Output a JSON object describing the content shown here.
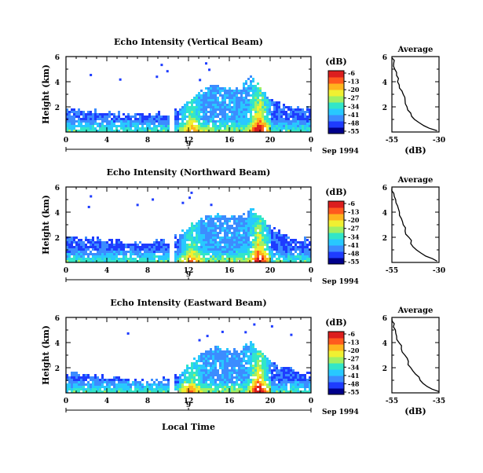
{
  "figure": {
    "date_label": "Sep 1994",
    "bottom_label": "Local Time",
    "colorbar_unit": "(dB)",
    "average_title": "Average",
    "colorbar_ticks": [
      "-6",
      "-13",
      "-20",
      "-27",
      "-34",
      "-41",
      "-48",
      "-55"
    ],
    "colorbar_colors": [
      "#00008b",
      "#1e3cff",
      "#3c8cff",
      "#28c8ff",
      "#32e6c8",
      "#a0f064",
      "#f0f032",
      "#ffb41e",
      "#ff5a1e",
      "#dc1e1e"
    ]
  },
  "chart_data": [
    {
      "type": "heatmap",
      "title": "Echo Intensity (Vertical Beam)",
      "ylabel": "Height (km)",
      "x_ticks": [
        "0",
        "4",
        "8",
        "12",
        "16",
        "20",
        "0"
      ],
      "date_tick": "9",
      "y_ticks": [
        "6",
        "4",
        "2"
      ],
      "xlim": [
        0,
        24
      ],
      "ylim": [
        0,
        6
      ],
      "echo_top_km": [
        1.9,
        1.9,
        1.8,
        1.7,
        1.6,
        1.6,
        1.5,
        1.5,
        1.4,
        1.6,
        1.4,
        2.0,
        2.6,
        3.3,
        3.7,
        3.8,
        3.5,
        3.6,
        4.5,
        3.5,
        2.6,
        2.4,
        2.1,
        1.9
      ],
      "convective_cores_hours": [
        12.2,
        18.8
      ],
      "average": {
        "xlabel": "(dB)",
        "x_ticks": [
          "-55",
          "-30"
        ],
        "y_ticks": [
          "6",
          "4",
          "2"
        ],
        "xlim": [
          -55,
          -30
        ],
        "ylim": [
          0,
          6
        ],
        "height_km": [
          0.1,
          0.5,
          1.0,
          1.5,
          2.0,
          2.5,
          3.0,
          3.5,
          4.0,
          4.5,
          5.0,
          5.5,
          5.9
        ],
        "db": [
          -31,
          -38,
          -43,
          -45,
          -47,
          -48,
          -49,
          -51,
          -52,
          -52.5,
          -53.5,
          -54,
          -55
        ]
      }
    },
    {
      "type": "heatmap",
      "title": "Echo Intensity (Northward Beam)",
      "ylabel": "Height (km)",
      "x_ticks": [
        "0",
        "4",
        "8",
        "12",
        "16",
        "20",
        "0"
      ],
      "date_tick": "9",
      "y_ticks": [
        "6",
        "4",
        "2"
      ],
      "xlim": [
        0,
        24
      ],
      "ylim": [
        0,
        6
      ],
      "echo_top_km": [
        2.1,
        2.0,
        2.0,
        1.9,
        1.8,
        1.8,
        1.7,
        1.6,
        1.6,
        1.8,
        1.6,
        2.4,
        3.0,
        3.5,
        3.8,
        4.0,
        3.7,
        3.6,
        4.4,
        3.6,
        2.8,
        2.4,
        2.1,
        1.9
      ],
      "convective_cores_hours": [
        12.2,
        18.8
      ],
      "average": {
        "xlabel": "",
        "x_ticks": [
          "-55",
          "-30"
        ],
        "y_ticks": [
          "6",
          "4",
          "2"
        ],
        "xlim": [
          -55,
          -30
        ],
        "ylim": [
          0,
          6
        ],
        "height_km": [
          0.1,
          0.5,
          1.0,
          1.5,
          2.0,
          2.5,
          3.0,
          3.5,
          4.0,
          4.5,
          5.0,
          5.5,
          5.9
        ],
        "db": [
          -31,
          -37,
          -42,
          -45,
          -46,
          -48,
          -49,
          -50,
          -51,
          -52,
          -53,
          -54,
          -55
        ]
      }
    },
    {
      "type": "heatmap",
      "title": "Echo Intensity (Eastward Beam)",
      "ylabel": "Height (km)",
      "x_ticks": [
        "0",
        "4",
        "8",
        "12",
        "16",
        "20",
        "0"
      ],
      "date_tick": "9",
      "y_ticks": [
        "6",
        "4",
        "2"
      ],
      "xlim": [
        0,
        24
      ],
      "ylim": [
        0,
        6
      ],
      "echo_top_km": [
        1.5,
        1.6,
        1.5,
        1.4,
        1.3,
        1.3,
        1.2,
        1.1,
        1.0,
        1.2,
        1.1,
        1.6,
        2.3,
        3.1,
        3.5,
        3.7,
        3.4,
        3.5,
        4.2,
        3.3,
        2.5,
        2.2,
        1.9,
        1.6
      ],
      "convective_cores_hours": [
        12.2,
        18.8
      ],
      "average": {
        "xlabel": "(dB)",
        "x_ticks": [
          "-55",
          "-35"
        ],
        "y_ticks": [
          "6",
          "4",
          "2"
        ],
        "xlim": [
          -55,
          -35
        ],
        "ylim": [
          0,
          6
        ],
        "height_km": [
          0.1,
          0.5,
          1.0,
          1.5,
          2.0,
          2.5,
          3.0,
          3.5,
          4.0,
          4.5,
          5.0,
          5.5,
          5.9
        ],
        "db": [
          -35,
          -40,
          -43,
          -45,
          -47,
          -48,
          -49.5,
          -51,
          -52,
          -53,
          -53.5,
          -54,
          -55
        ]
      }
    }
  ]
}
